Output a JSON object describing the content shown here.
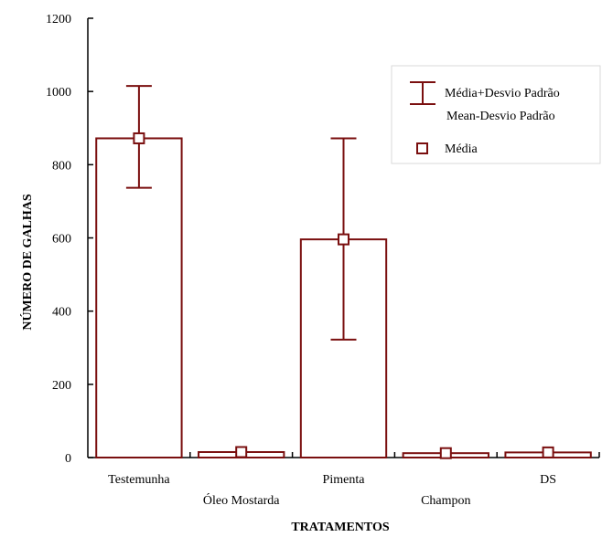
{
  "chart_data": {
    "type": "bar",
    "title": "",
    "xlabel": "TRATAMENTOS",
    "ylabel": "NÚMERO DE GALHAS",
    "ylim": [
      0,
      1200
    ],
    "yticks": [
      0,
      200,
      400,
      600,
      800,
      1000,
      1200
    ],
    "categories": [
      "Testemunha",
      "Óleo Mostarda",
      "Pimenta",
      "Champon",
      "DS"
    ],
    "series": [
      {
        "name": "Média",
        "values": [
          872,
          15,
          596,
          12,
          14
        ],
        "upper": [
          1015,
          15,
          872,
          12,
          14
        ],
        "lower": [
          737,
          15,
          322,
          12,
          14
        ]
      }
    ],
    "legend": {
      "position": "top-right",
      "entries": [
        {
          "label": "Média+Desvio Padrão",
          "marker": "error-bar"
        },
        {
          "label": "Mean-Desvio Padrão",
          "marker": "error-bar"
        },
        {
          "label": "Média",
          "marker": "open-square"
        }
      ]
    },
    "colors": {
      "bar": "#7a0f0f",
      "axis": "#000000"
    },
    "grid": false
  }
}
